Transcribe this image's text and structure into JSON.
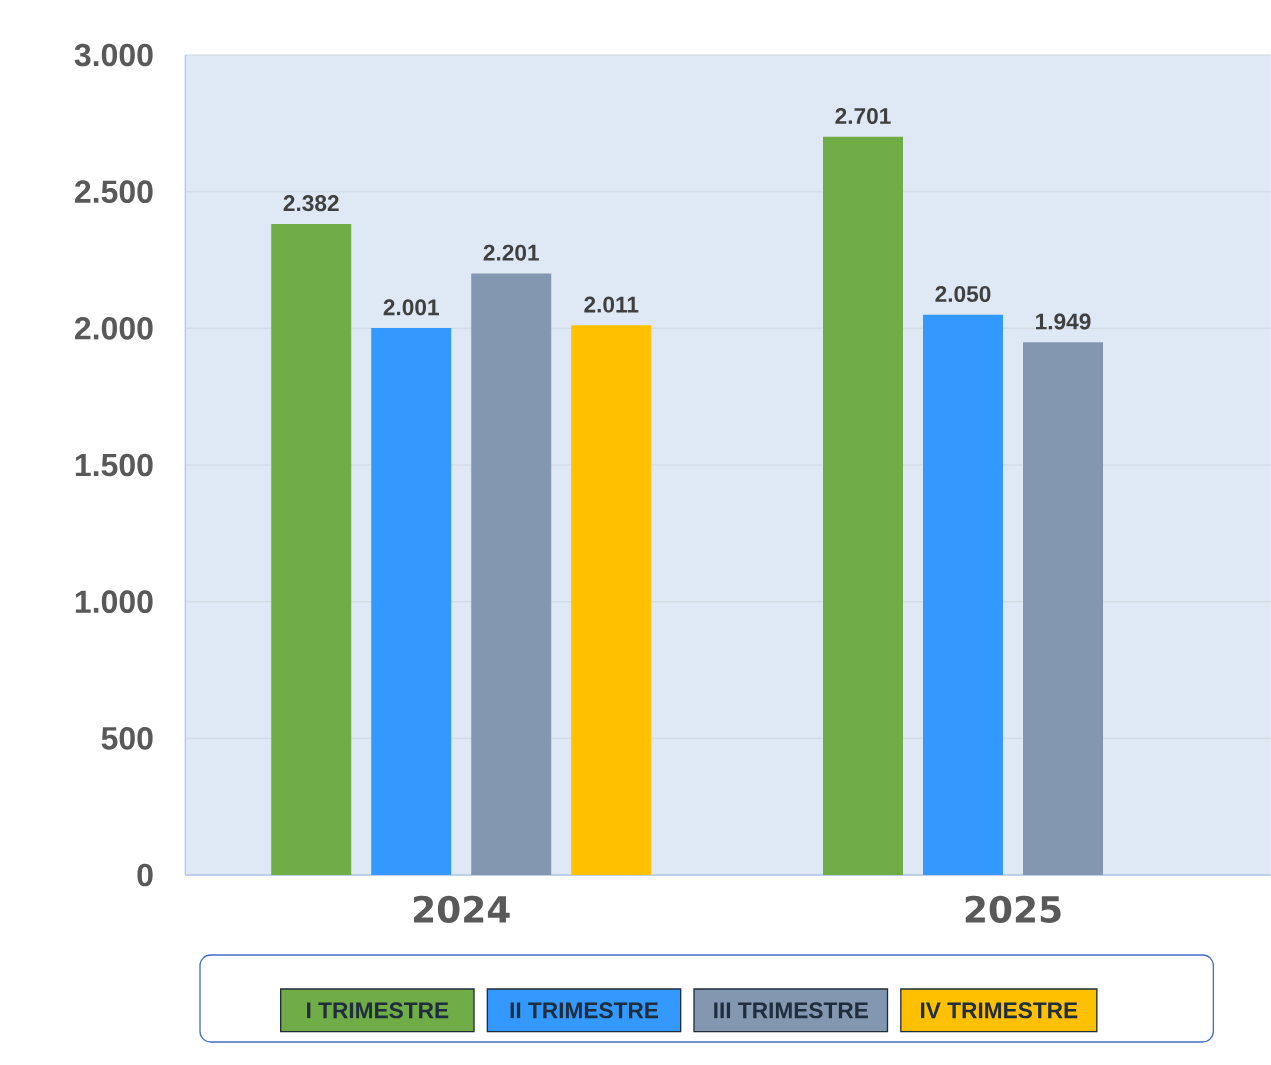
{
  "chart_data": {
    "type": "bar",
    "categories": [
      "2024",
      "2025"
    ],
    "series": [
      {
        "name": "I TRIMESTRE",
        "color": "#70ad47",
        "values": [
          2382,
          2701
        ],
        "value_labels": [
          "2.382",
          "2.701"
        ]
      },
      {
        "name": "II TRIMESTRE",
        "color": "#3399ff",
        "values": [
          2001,
          2050
        ],
        "value_labels": [
          "2.001",
          "2.050"
        ]
      },
      {
        "name": "III TRIMESTRE",
        "color": "#8497b0",
        "values": [
          2201,
          1949
        ],
        "value_labels": [
          "2.201",
          "1.949"
        ]
      },
      {
        "name": "IV TRIMESTRE",
        "color": "#ffc000",
        "values": [
          2011,
          null
        ],
        "value_labels": [
          "2.011",
          null
        ]
      }
    ],
    "ylim": [
      0,
      3000
    ],
    "yticks": [
      {
        "value": 0,
        "label": "0"
      },
      {
        "value": 500,
        "label": "500"
      },
      {
        "value": 1000,
        "label": "1.000"
      },
      {
        "value": 1500,
        "label": "1.500"
      },
      {
        "value": 2000,
        "label": "2.000"
      },
      {
        "value": 2500,
        "label": "2.500"
      },
      {
        "value": 3000,
        "label": "3.000"
      }
    ],
    "grid": "y",
    "legend": "bottom"
  }
}
